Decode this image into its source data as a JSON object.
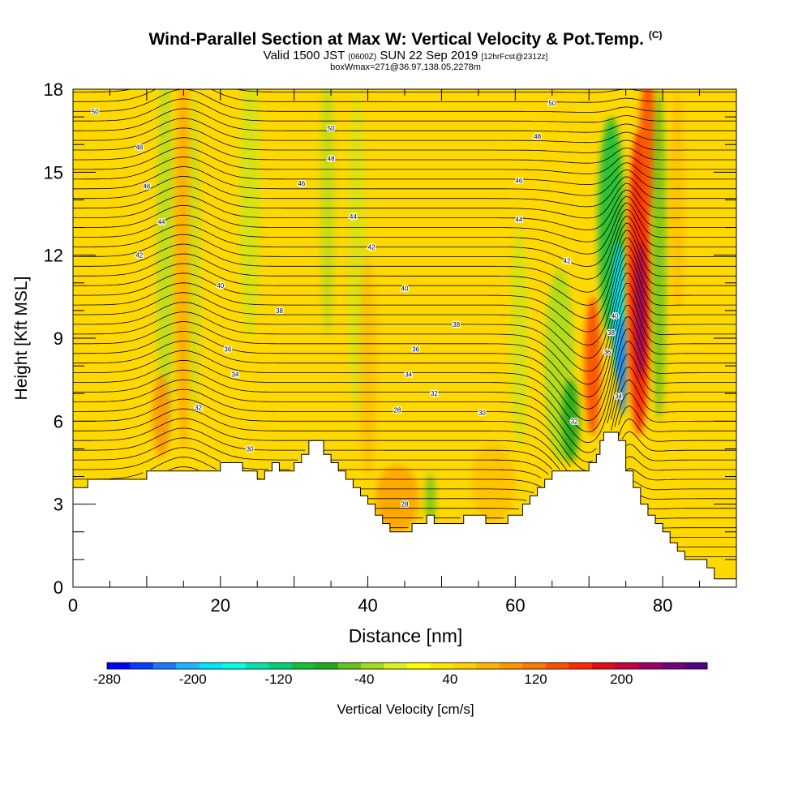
{
  "chart_data": {
    "type": "heatmap",
    "title": "Wind-Parallel Section at Max W: Vertical Velocity & Pot.Temp.",
    "copyright": "(C)",
    "subtitle_pre": "Valid 1500 JST",
    "subtitle_utc": "(0600Z)",
    "subtitle_mid": "SUN 22 Sep 2019",
    "subtitle_fcst": "[12hrFcst@2312z]",
    "subtitle2": "boxWmax=271@36.97,138.05,2278m",
    "xlabel": "Distance [nm]",
    "ylabel": "Height [Kft MSL]",
    "xlim": [
      0,
      90
    ],
    "ylim": [
      0,
      18
    ],
    "x_ticks": [
      "0",
      "20",
      "40",
      "60",
      "80"
    ],
    "y_ticks": [
      "0",
      "3",
      "6",
      "9",
      "12",
      "15",
      "18"
    ],
    "colorbar": {
      "label": "Vertical Velocity [cm/s]",
      "range": [
        -280,
        280
      ],
      "tick_labels": [
        "-280",
        "-200",
        "-120",
        "-40",
        "40",
        "120",
        "200"
      ],
      "colors": [
        "#0000ff",
        "#0a3cff",
        "#1e78ff",
        "#1eb4ff",
        "#00e6ff",
        "#00ffe1",
        "#00e6aa",
        "#00d278",
        "#14be3c",
        "#1eaa1e",
        "#64c31e",
        "#a0dc1e",
        "#dcf01e",
        "#ffff00",
        "#ffe600",
        "#ffd200",
        "#ffb400",
        "#ff9600",
        "#ff7800",
        "#ff5000",
        "#ff2800",
        "#e60a14",
        "#c8003c",
        "#a00064",
        "#780078",
        "#500082"
      ]
    },
    "theta_contour_labels": [
      "28",
      "30",
      "32",
      "34",
      "36",
      "38",
      "40",
      "42",
      "44",
      "46",
      "48",
      "50"
    ],
    "terrain_heights_kft": [
      [
        0,
        3.6
      ],
      [
        2,
        3.6
      ],
      [
        2,
        3.9
      ],
      [
        10,
        3.9
      ],
      [
        10,
        4.2
      ],
      [
        20,
        4.2
      ],
      [
        20,
        4.5
      ],
      [
        23,
        4.5
      ],
      [
        23,
        4.2
      ],
      [
        25,
        4.2
      ],
      [
        25,
        3.9
      ],
      [
        26,
        3.9
      ],
      [
        26,
        4.2
      ],
      [
        27,
        4.2
      ],
      [
        27,
        4.5
      ],
      [
        28,
        4.5
      ],
      [
        28,
        4.2
      ],
      [
        30,
        4.2
      ],
      [
        30,
        4.5
      ],
      [
        31,
        4.5
      ],
      [
        31,
        4.8
      ],
      [
        32,
        4.8
      ],
      [
        32,
        5.3
      ],
      [
        34,
        5.3
      ],
      [
        34,
        4.8
      ],
      [
        35,
        4.8
      ],
      [
        35,
        4.5
      ],
      [
        36,
        4.5
      ],
      [
        36,
        4.2
      ],
      [
        37,
        4.2
      ],
      [
        37,
        3.9
      ],
      [
        38,
        3.9
      ],
      [
        38,
        3.6
      ],
      [
        39,
        3.6
      ],
      [
        39,
        3.3
      ],
      [
        40,
        3.3
      ],
      [
        40,
        3.0
      ],
      [
        41,
        3.0
      ],
      [
        41,
        2.6
      ],
      [
        42,
        2.6
      ],
      [
        42,
        2.3
      ],
      [
        43,
        2.3
      ],
      [
        43,
        2.0
      ],
      [
        46,
        2.0
      ],
      [
        46,
        2.3
      ],
      [
        48,
        2.3
      ],
      [
        48,
        2.6
      ],
      [
        49,
        2.6
      ],
      [
        49,
        2.3
      ],
      [
        53,
        2.3
      ],
      [
        53,
        2.6
      ],
      [
        56,
        2.6
      ],
      [
        56,
        2.3
      ],
      [
        59,
        2.3
      ],
      [
        59,
        2.6
      ],
      [
        61,
        2.6
      ],
      [
        61,
        3.0
      ],
      [
        62,
        3.0
      ],
      [
        62,
        3.3
      ],
      [
        63,
        3.3
      ],
      [
        63,
        3.6
      ],
      [
        64,
        3.6
      ],
      [
        64,
        3.9
      ],
      [
        65,
        3.9
      ],
      [
        65,
        4.2
      ],
      [
        70,
        4.2
      ],
      [
        70,
        4.5
      ],
      [
        71,
        4.5
      ],
      [
        71,
        4.8
      ],
      [
        71.5,
        4.8
      ],
      [
        71.5,
        5.3
      ],
      [
        72,
        5.3
      ],
      [
        72,
        5.6
      ],
      [
        74,
        5.6
      ],
      [
        74,
        5.3
      ],
      [
        75,
        5.3
      ],
      [
        75,
        4.2
      ],
      [
        76,
        4.2
      ],
      [
        76,
        3.6
      ],
      [
        77,
        3.6
      ],
      [
        77,
        3.0
      ],
      [
        78,
        3.0
      ],
      [
        78,
        2.6
      ],
      [
        79,
        2.6
      ],
      [
        79,
        2.3
      ],
      [
        80,
        2.3
      ],
      [
        80,
        2.0
      ],
      [
        81,
        2.0
      ],
      [
        81,
        1.6
      ],
      [
        82,
        1.6
      ],
      [
        82,
        1.3
      ],
      [
        83,
        1.3
      ],
      [
        83,
        1.0
      ],
      [
        86,
        1.0
      ],
      [
        86,
        0.7
      ],
      [
        87,
        0.7
      ],
      [
        87,
        0.3
      ],
      [
        90,
        0.3
      ]
    ]
  }
}
